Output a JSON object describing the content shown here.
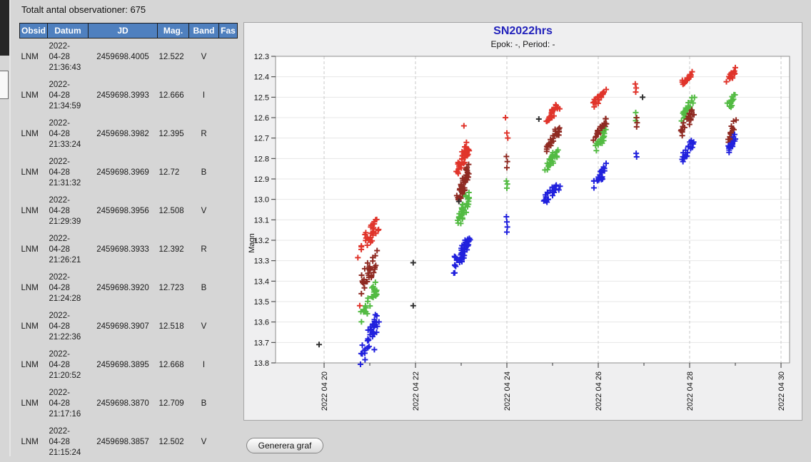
{
  "window": {
    "total_label": "Totalt antal observationer: 675"
  },
  "table": {
    "headers": [
      "Obsid",
      "Datum",
      "JD",
      "Mag.",
      "Band",
      "Fas"
    ],
    "rows": [
      {
        "obsid": "LNM",
        "date": "2022-04-28",
        "time": "21:36:43",
        "jd": "2459698.4005",
        "mag": "12.522",
        "band": "V",
        "fas": ""
      },
      {
        "obsid": "LNM",
        "date": "2022-04-28",
        "time": "21:34:59",
        "jd": "2459698.3993",
        "mag": "12.666",
        "band": "I",
        "fas": ""
      },
      {
        "obsid": "LNM",
        "date": "2022-04-28",
        "time": "21:33:24",
        "jd": "2459698.3982",
        "mag": "12.395",
        "band": "R",
        "fas": ""
      },
      {
        "obsid": "LNM",
        "date": "2022-04-28",
        "time": "21:31:32",
        "jd": "2459698.3969",
        "mag": "12.72",
        "band": "B",
        "fas": ""
      },
      {
        "obsid": "LNM",
        "date": "2022-04-28",
        "time": "21:29:39",
        "jd": "2459698.3956",
        "mag": "12.508",
        "band": "V",
        "fas": ""
      },
      {
        "obsid": "LNM",
        "date": "2022-04-28",
        "time": "21:26:21",
        "jd": "2459698.3933",
        "mag": "12.392",
        "band": "R",
        "fas": ""
      },
      {
        "obsid": "LNM",
        "date": "2022-04-28",
        "time": "21:24:28",
        "jd": "2459698.3920",
        "mag": "12.723",
        "band": "B",
        "fas": ""
      },
      {
        "obsid": "LNM",
        "date": "2022-04-28",
        "time": "21:22:36",
        "jd": "2459698.3907",
        "mag": "12.518",
        "band": "V",
        "fas": ""
      },
      {
        "obsid": "LNM",
        "date": "2022-04-28",
        "time": "21:20:52",
        "jd": "2459698.3895",
        "mag": "12.668",
        "band": "I",
        "fas": ""
      },
      {
        "obsid": "LNM",
        "date": "2022-04-28",
        "time": "21:17:16",
        "jd": "2459698.3870",
        "mag": "12.709",
        "band": "B",
        "fas": ""
      },
      {
        "obsid": "LNM",
        "date": "2022-04-28",
        "time": "21:15:24",
        "jd": "2459698.3857",
        "mag": "12.502",
        "band": "V",
        "fas": ""
      }
    ]
  },
  "controls": {
    "generate_button": "Generera graf"
  },
  "chart_data": {
    "type": "scatter",
    "title": "SN2022hrs",
    "subtitle": "Epok: -, Period: -",
    "ylabel": "Magn",
    "marker": "plus",
    "y_axis_inverted": true,
    "ylim": [
      12.3,
      13.8
    ],
    "y_tick_step": 0.1,
    "xlim_days": [
      18.94,
      30.19
    ],
    "x_ticks": [
      {
        "label": "2022 04 20",
        "day": 20
      },
      {
        "label": "2022 04 22",
        "day": 22
      },
      {
        "label": "2022 04 24",
        "day": 24
      },
      {
        "label": "2022 04 26",
        "day": 26
      },
      {
        "label": "2022 04 28",
        "day": 28
      },
      {
        "label": "2022 04 30",
        "day": 30
      }
    ],
    "x_minor_tick_days": [
      21,
      23,
      25,
      27,
      29
    ],
    "grid": {
      "horizontal": "solid",
      "vertical": "dashed"
    },
    "bands": {
      "B": "#2121dd",
      "V": "#53bb43",
      "R": "#e0342b",
      "I": "#8f2a22",
      "Vis": "#303030"
    },
    "clusters": [
      [
        "R",
        20.76,
        21.2,
        13.25,
        13.11,
        30
      ],
      [
        "I",
        20.78,
        21.18,
        13.435,
        13.27,
        32
      ],
      [
        "V",
        20.8,
        21.16,
        13.57,
        13.43,
        30
      ],
      [
        "B",
        20.78,
        21.2,
        13.775,
        13.59,
        34
      ],
      [
        "R",
        22.92,
        23.18,
        12.855,
        12.725,
        42
      ],
      [
        "I",
        22.92,
        23.17,
        12.995,
        12.855,
        42
      ],
      [
        "V",
        22.95,
        23.16,
        13.105,
        12.99,
        36
      ],
      [
        "B",
        22.84,
        23.2,
        13.33,
        13.19,
        48
      ],
      [
        "R",
        24.84,
        25.15,
        12.615,
        12.54,
        24
      ],
      [
        "I",
        24.85,
        25.15,
        12.75,
        12.66,
        24
      ],
      [
        "V",
        24.85,
        25.14,
        12.845,
        12.76,
        24
      ],
      [
        "B",
        24.82,
        25.16,
        13.01,
        12.92,
        24
      ],
      [
        "R",
        25.88,
        26.18,
        12.535,
        12.47,
        24
      ],
      [
        "I",
        25.9,
        26.18,
        12.705,
        12.625,
        22
      ],
      [
        "V",
        25.92,
        26.18,
        12.76,
        12.67,
        18
      ],
      [
        "B",
        25.9,
        26.19,
        12.935,
        12.845,
        24
      ],
      [
        "R",
        27.82,
        28.08,
        12.435,
        12.38,
        18
      ],
      [
        "V",
        27.83,
        28.09,
        12.595,
        12.51,
        22
      ],
      [
        "I",
        27.82,
        28.09,
        12.67,
        12.575,
        24
      ],
      [
        "B",
        27.83,
        28.08,
        12.81,
        12.72,
        22
      ],
      [
        "R",
        28.82,
        29.02,
        12.42,
        12.365,
        14
      ],
      [
        "V",
        28.85,
        29.02,
        12.545,
        12.48,
        14
      ],
      [
        "I",
        28.85,
        29.03,
        12.71,
        12.615,
        18
      ],
      [
        "B",
        28.85,
        29.03,
        12.76,
        12.69,
        16
      ]
    ],
    "singles": [
      [
        "Vis",
        19.89,
        13.71
      ],
      [
        "Vis",
        21.95,
        13.31
      ],
      [
        "Vis",
        21.95,
        13.52
      ],
      [
        "Vis",
        22.95,
        13.01
      ],
      [
        "Vis",
        24.7,
        12.607
      ],
      [
        "Vis",
        26.97,
        12.5
      ],
      [
        "R",
        20.78,
        13.52
      ],
      [
        "R",
        23.06,
        12.64
      ],
      [
        "R",
        23.97,
        12.6
      ],
      [
        "R",
        24.0,
        12.675
      ],
      [
        "R",
        24.02,
        12.7
      ],
      [
        "I",
        23.99,
        12.79
      ],
      [
        "I",
        24.01,
        12.815
      ],
      [
        "I",
        24.0,
        12.845
      ],
      [
        "V",
        23.99,
        12.91
      ],
      [
        "V",
        24.01,
        12.925
      ],
      [
        "V",
        24.0,
        12.945
      ],
      [
        "B",
        23.99,
        13.085
      ],
      [
        "B",
        24.0,
        13.11
      ],
      [
        "B",
        24.01,
        13.135
      ],
      [
        "B",
        24.0,
        13.16
      ],
      [
        "B",
        21.1,
        13.735
      ],
      [
        "R",
        26.81,
        12.435
      ],
      [
        "R",
        26.83,
        12.455
      ],
      [
        "R",
        26.82,
        12.475
      ],
      [
        "V",
        26.82,
        12.575
      ],
      [
        "V",
        26.83,
        12.6
      ],
      [
        "V",
        26.82,
        12.615
      ],
      [
        "I",
        26.84,
        12.6
      ],
      [
        "I",
        26.85,
        12.625
      ],
      [
        "I",
        26.84,
        12.645
      ],
      [
        "B",
        26.83,
        12.775
      ],
      [
        "B",
        26.84,
        12.792
      ]
    ]
  }
}
